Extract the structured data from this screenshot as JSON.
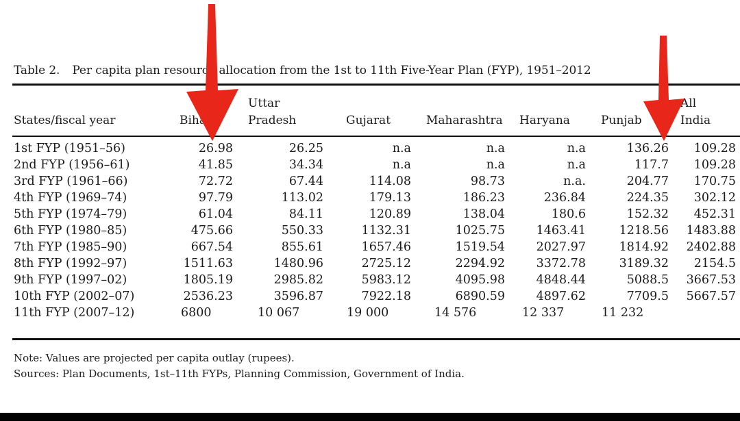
{
  "caption": {
    "label": "Table 2.",
    "title": "Per capita plan resource allocation from the 1st to 11th Five-Year Plan (FYP), 1951–2012"
  },
  "headers": {
    "state": "States/fiscal year",
    "bihar": "Bihar",
    "up_line1": "Uttar",
    "up_line2": "Pradesh",
    "gujarat": "Gujarat",
    "maharashtra": "Maharashtra",
    "haryana": "Haryana",
    "punjab": "Punjab",
    "india_line1": "All",
    "india_line2": "India"
  },
  "rows": [
    {
      "plan": "1st FYP (1951–56)",
      "bihar": "26.98",
      "up": "26.25",
      "gujarat": "n.a",
      "maharashtra": "n.a",
      "haryana": "n.a",
      "punjab": "136.26",
      "india": "109.28"
    },
    {
      "plan": "2nd FYP (1956–61)",
      "bihar": "41.85",
      "up": "34.34",
      "gujarat": "n.a",
      "maharashtra": "n.a",
      "haryana": "n.a",
      "punjab": "117.7",
      "india": "109.28"
    },
    {
      "plan": "3rd FYP (1961–66)",
      "bihar": "72.72",
      "up": "67.44",
      "gujarat": "114.08",
      "maharashtra": "98.73",
      "haryana": "n.a.",
      "punjab": "204.77",
      "india": "170.75"
    },
    {
      "plan": "4th FYP (1969–74)",
      "bihar": "97.79",
      "up": "113.02",
      "gujarat": "179.13",
      "maharashtra": "186.23",
      "haryana": "236.84",
      "punjab": "224.35",
      "india": "302.12"
    },
    {
      "plan": "5th FYP (1974–79)",
      "bihar": "61.04",
      "up": "84.11",
      "gujarat": "120.89",
      "maharashtra": "138.04",
      "haryana": "180.6",
      "punjab": "152.32",
      "india": "452.31"
    },
    {
      "plan": "6th FYP (1980–85)",
      "bihar": "475.66",
      "up": "550.33",
      "gujarat": "1132.31",
      "maharashtra": "1025.75",
      "haryana": "1463.41",
      "punjab": "1218.56",
      "india": "1483.88"
    },
    {
      "plan": "7th FYP (1985–90)",
      "bihar": "667.54",
      "up": "855.61",
      "gujarat": "1657.46",
      "maharashtra": "1519.54",
      "haryana": "2027.97",
      "punjab": "1814.92",
      "india": "2402.88"
    },
    {
      "plan": "8th FYP (1992–97)",
      "bihar": "1511.63",
      "up": "1480.96",
      "gujarat": "2725.12",
      "maharashtra": "2294.92",
      "haryana": "3372.78",
      "punjab": "3189.32",
      "india": "2154.5"
    },
    {
      "plan": "9th FYP (1997–02)",
      "bihar": "1805.19",
      "up": "2985.82",
      "gujarat": "5983.12",
      "maharashtra": "4095.98",
      "haryana": "4848.44",
      "punjab": "5088.5",
      "india": "3667.53"
    },
    {
      "plan": "10th FYP (2002–07)",
      "bihar": "2536.23",
      "up": "3596.87",
      "gujarat": "7922.18",
      "maharashtra": "6890.59",
      "haryana": "4897.62",
      "punjab": "7709.5",
      "india": "5667.57"
    },
    {
      "plan": "11th FYP (2007–12)",
      "bihar": "6800",
      "up": "10 067",
      "gujarat": "19 000",
      "maharashtra": "14 576",
      "haryana": "12 337",
      "punjab": "11 232",
      "india": ""
    }
  ],
  "notes": {
    "note": "Note: Values are projected per capita outlay (rupees).",
    "sources": "Sources: Plan Documents, 1st–11th FYPs, Planning Commission, Government of India."
  },
  "colors": {
    "arrow": "#e8261a",
    "text": "#1c1c1c"
  },
  "icons": [
    "arrow-down-icon",
    "arrow-down-icon"
  ]
}
